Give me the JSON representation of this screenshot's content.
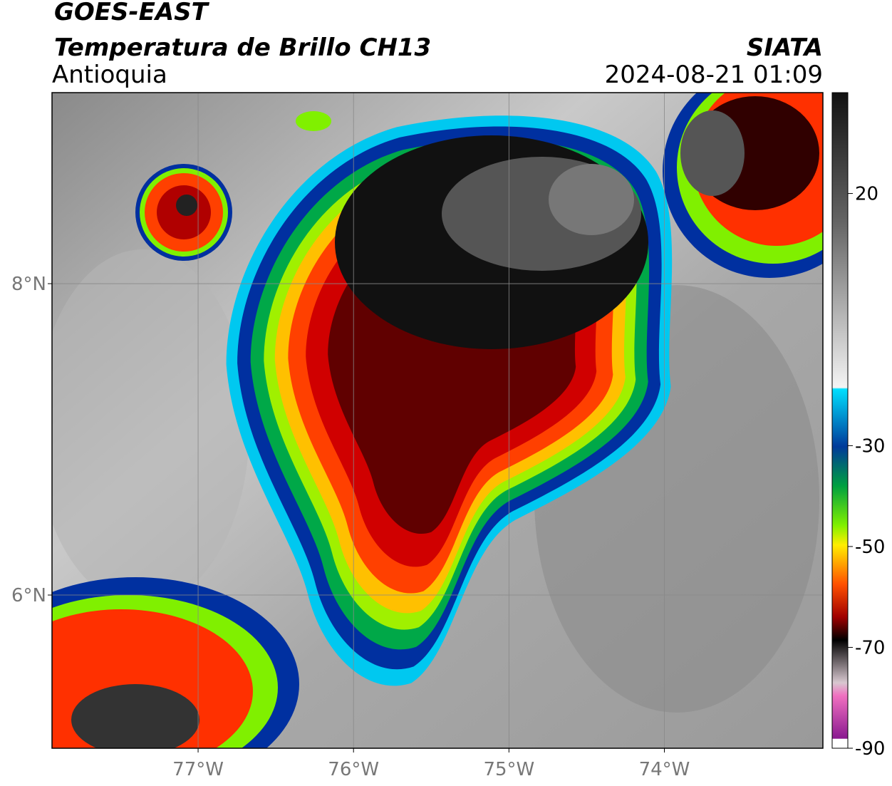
{
  "header": {
    "satellite": "GOES-EAST",
    "product": "Temperatura de Brillo CH13",
    "region": "Antioquia",
    "source": "SIATA",
    "datetime": "2024-08-21 01:09"
  },
  "map": {
    "lat_range": [
      5.016,
      9.227
    ],
    "lon_range": [
      -77.94,
      -72.98
    ],
    "lat_ticks": [
      {
        "value": 8,
        "label": "8°N"
      },
      {
        "value": 6,
        "label": "6°N"
      }
    ],
    "lon_ticks": [
      {
        "value": -77,
        "label": "77°W"
      },
      {
        "value": -76,
        "label": "76°W"
      },
      {
        "value": -75,
        "label": "75°W"
      },
      {
        "value": -74,
        "label": "74°W"
      }
    ],
    "grid": true
  },
  "colorbar": {
    "range": [
      -90,
      40
    ],
    "ticks": [
      20,
      -30,
      -50,
      -70,
      -90
    ]
  }
}
